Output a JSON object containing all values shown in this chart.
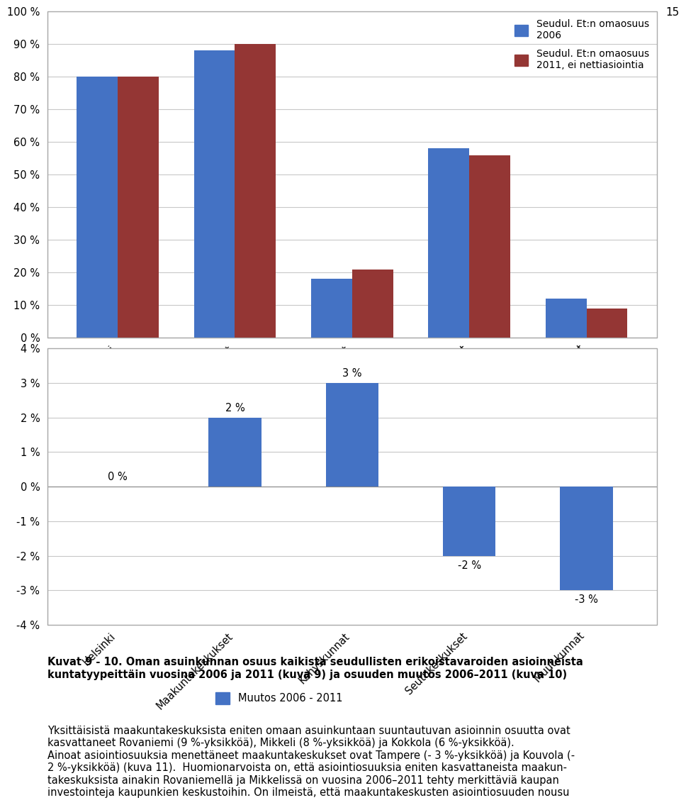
{
  "chart1": {
    "categories": [
      "Helsinki",
      "Maakuntakeskukset",
      "Kehyskunnat",
      "Seutukeskukset",
      "Muut kunnat"
    ],
    "series1_label": "Seudul. Et:n omaosuus\n2006",
    "series2_label": "Seudul. Et:n omaosuus\n2011, ei nettiasiointia",
    "series1_values": [
      80,
      88,
      18,
      58,
      12
    ],
    "series2_values": [
      80,
      90,
      21,
      56,
      9
    ],
    "series1_color": "#4472C4",
    "series2_color": "#943634",
    "ylim": [
      0,
      100
    ],
    "yticks": [
      0,
      10,
      20,
      30,
      40,
      50,
      60,
      70,
      80,
      90,
      100
    ]
  },
  "chart2": {
    "categories": [
      "Helsinki",
      "Maakuntakeskukset",
      "Kehyskunnat",
      "Seutukeskukset",
      "Muut kunnat"
    ],
    "values": [
      0,
      2,
      3,
      -2,
      -3
    ],
    "bar_color": "#4472C4",
    "legend_label": "Muutos 2006 - 2011",
    "ylim": [
      -4,
      4
    ],
    "yticks": [
      -4,
      -3,
      -2,
      -1,
      0,
      1,
      2,
      3,
      4
    ],
    "data_labels": [
      "0 %",
      "2 %",
      "3 %",
      "-2 %",
      "-3 %"
    ]
  },
  "caption_bold": "Kuvat 9 - 10. Oman asuinkunnan osuus kaikista seudullisten erikoistavaroiden asioinneista\nkuntatyypeittäin vuosina 2006 ja 2011 (kuva 9) ja osuuden muutos 2006–2011 (kuva 10)",
  "body_text": "Yksittäisistä maakuntakeskuksista eniten omaan asuinkuntaan suuntautuvan asioinnin osuutta ovat\nkasvattaneet Rovaniemi (9 %-yksikköä), Mikkeli (8 %-yksikköä) ja Kokkola (6 %-yksikköä).\nAinoat asiointiosuuksia menettäneet maakuntakeskukset ovat Tampere (- 3 %-yksikköä) ja Kouvola (-\n2 %-yksikköä) (kuva 11).  Huomionarvoista on, että asiointiosuuksia eniten kasvattaneista maakun-\ntakeskuksista ainakin Rovaniemellä ja Mikkelissä on vuosina 2006–2011 tehty merkittäviä kaupan\ninvestointeja kaupunkien keskustoihin. On ilmeistä, että maakuntakeskusten asiointiosuuden nousu",
  "page_number": "15",
  "background_color": "#ffffff",
  "grid_color": "#c8c8c8"
}
